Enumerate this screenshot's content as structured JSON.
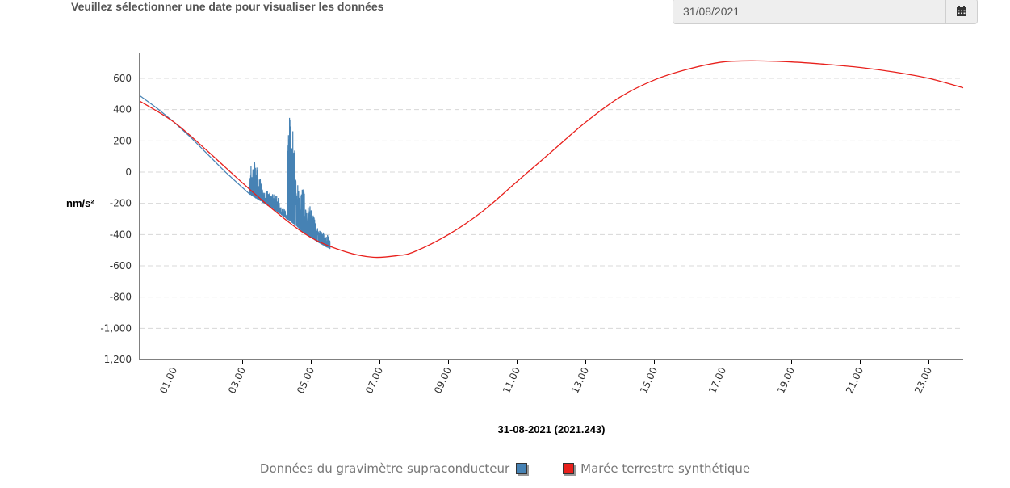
{
  "header": {
    "prompt": "Veuillez sélectionner une date pour visualiser les données"
  },
  "date_picker": {
    "value": "31/08/2021",
    "icon": "calendar-icon"
  },
  "colors": {
    "gravimeter": "#4682b4",
    "tide": "#e8201c",
    "grid": "#d8d8d8",
    "axis": "#000000"
  },
  "chart_data": {
    "type": "line",
    "title": "",
    "ylabel": "nm/s²",
    "xlabel": "31-08-2021 (2021.243)",
    "ylim": [
      -1200,
      750
    ],
    "xlim": [
      0,
      24
    ],
    "y_ticks": [
      600,
      400,
      200,
      0,
      -200,
      -400,
      -600,
      -800,
      -1000,
      -1200
    ],
    "y_tick_labels": [
      "600",
      "400",
      "200",
      "0",
      "-200",
      "-400",
      "-600",
      "-800",
      "-1,000",
      "-1,200"
    ],
    "x_ticks": [
      1,
      3,
      5,
      7,
      9,
      11,
      13,
      15,
      17,
      19,
      21,
      23
    ],
    "x_tick_labels": [
      "01.00",
      "03.00",
      "05.00",
      "07.00",
      "09.00",
      "11.00",
      "13.00",
      "15.00",
      "17.00",
      "19.00",
      "21.00",
      "23.00"
    ],
    "grid": true,
    "legend_position": "bottom",
    "series": [
      {
        "name": "Données du gravimètre supraconducteur",
        "color": "#4682b4",
        "x": [
          0,
          0.5,
          1,
          1.5,
          2,
          2.5,
          3,
          3.2,
          3.5,
          4,
          4.3,
          4.5,
          4.7,
          5,
          5.3,
          5.55
        ],
        "y": [
          490,
          410,
          320,
          220,
          110,
          0,
          -100,
          -140,
          -180,
          -250,
          -300,
          -330,
          -370,
          -420,
          -460,
          -490
        ],
        "burst": [
          {
            "x_start": 3.2,
            "x_end": 3.9,
            "amp_top": 230,
            "amp_bottom": 230
          },
          {
            "x_start": 3.9,
            "x_end": 4.3,
            "amp_top": 120,
            "amp_bottom": 150
          },
          {
            "x_start": 4.3,
            "x_end": 4.8,
            "amp_top": 700,
            "amp_bottom": 680
          },
          {
            "x_start": 4.8,
            "x_end": 5.55,
            "amp_top": 200,
            "amp_bottom": 180
          }
        ]
      },
      {
        "name": "Marée terrestre synthétique",
        "color": "#e8201c",
        "x": [
          0,
          1,
          2,
          3,
          4,
          5,
          6,
          6.8,
          7.5,
          8,
          9,
          10,
          11,
          12,
          13,
          14,
          15,
          16,
          17,
          18,
          19,
          20,
          21,
          22,
          23,
          24
        ],
        "y": [
          455,
          320,
          130,
          -70,
          -260,
          -420,
          -510,
          -545,
          -535,
          -510,
          -400,
          -250,
          -60,
          130,
          320,
          480,
          590,
          660,
          705,
          712,
          705,
          690,
          670,
          640,
          600,
          540
        ]
      }
    ]
  }
}
